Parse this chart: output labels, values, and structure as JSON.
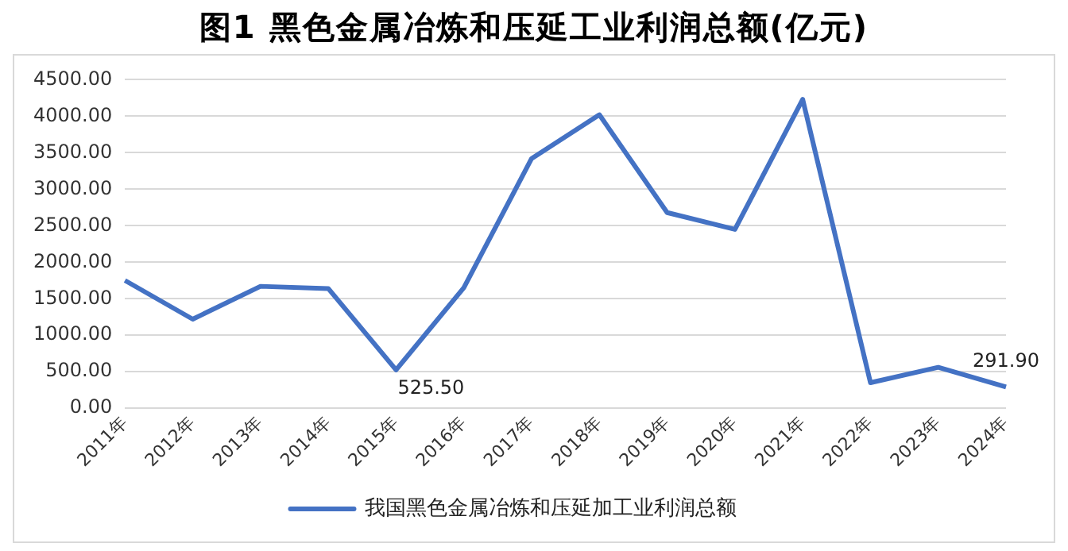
{
  "chart_data": {
    "type": "line",
    "title": "图1 黑色金属冶炼和压延工业利润总额(亿元)",
    "categories": [
      "2011年",
      "2012年",
      "2013年",
      "2014年",
      "2015年",
      "2016年",
      "2017年",
      "2018年",
      "2019年",
      "2020年",
      "2021年",
      "2022年",
      "2023年",
      "2024年"
    ],
    "series": [
      {
        "name": "我国黑色金属冶炼和压延加工业利润总额",
        "color": "#4472c4",
        "values": [
          1750,
          1220,
          1670,
          1640,
          525.5,
          1650,
          3420,
          4020,
          2680,
          2450,
          4230,
          350,
          560,
          291.9
        ],
        "value_labels": [
          null,
          null,
          null,
          null,
          "525.50",
          null,
          null,
          null,
          null,
          null,
          null,
          null,
          null,
          "291.90"
        ]
      }
    ],
    "ylim": [
      0,
      4500
    ],
    "yticks": [
      {
        "value": 0,
        "label": "0.00"
      },
      {
        "value": 500,
        "label": "500.00"
      },
      {
        "value": 1000,
        "label": "1000.00"
      },
      {
        "value": 1500,
        "label": "1500.00"
      },
      {
        "value": 2000,
        "label": "2000.00"
      },
      {
        "value": 2500,
        "label": "2500.00"
      },
      {
        "value": 3000,
        "label": "3000.00"
      },
      {
        "value": 3500,
        "label": "3500.00"
      },
      {
        "value": 4000,
        "label": "4000.00"
      },
      {
        "value": 4500,
        "label": "4500.00"
      }
    ],
    "grid": "y",
    "legend": "bottom",
    "marker": "none",
    "line_style": "solid"
  }
}
